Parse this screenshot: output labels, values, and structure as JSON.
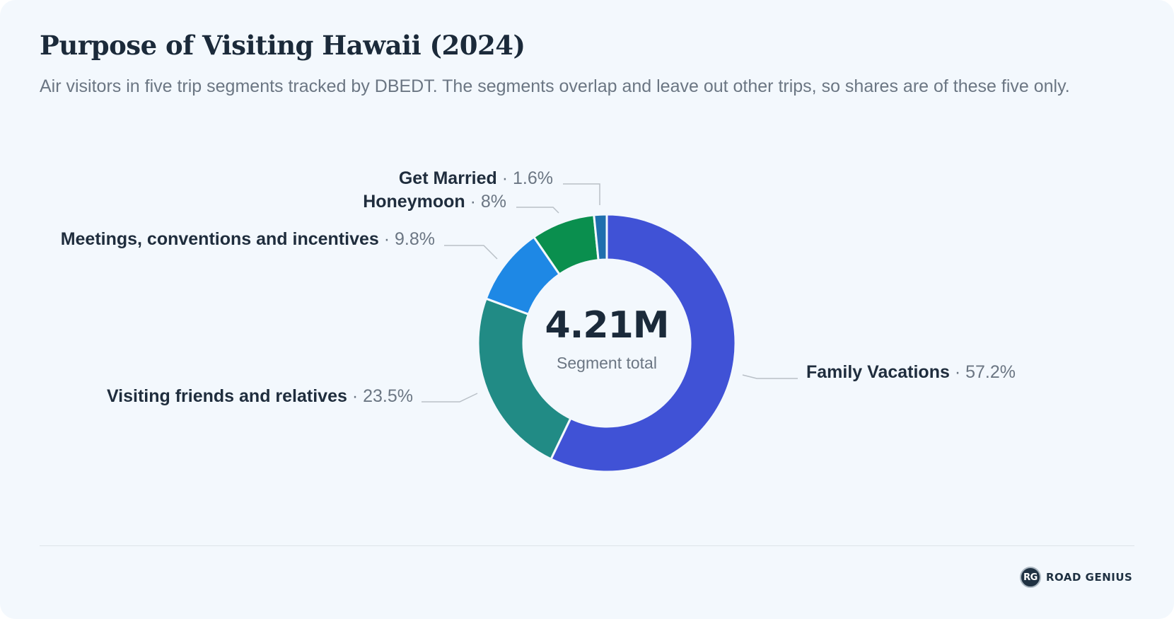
{
  "header": {
    "title": "Purpose of Visiting Hawaii (2024)",
    "subtitle": "Air visitors in five trip segments tracked by DBEDT. The segments overlap and leave out other trips, so shares are of these five only."
  },
  "chart_data": {
    "type": "pie",
    "donut": true,
    "title": "Purpose of Visiting Hawaii (2024)",
    "center_value": "4.21M",
    "center_label": "Segment total",
    "unit": "%",
    "slices": [
      {
        "label": "Family Vacations",
        "value": 57.2,
        "value_label": "57.2%",
        "color": "#4052d6"
      },
      {
        "label": "Visiting friends and relatives",
        "value": 23.5,
        "value_label": "23.5%",
        "color": "#218b85"
      },
      {
        "label": "Meetings, conventions and incentives",
        "value": 9.8,
        "value_label": "9.8%",
        "color": "#1e88e5"
      },
      {
        "label": "Honeymoon",
        "value": 8,
        "value_label": "8%",
        "color": "#0a8f4e"
      },
      {
        "label": "Get Married",
        "value": 1.6,
        "value_label": "1.6%",
        "color": "#1f6fae"
      }
    ],
    "legend": "none",
    "labels": "outside-with-leader-lines"
  },
  "colors": {
    "background": "#f3f8fd",
    "title": "#1b2a3a",
    "subtitle": "#6b7683",
    "label_name": "#1f2d3d",
    "label_value": "#6b7683",
    "leader_line": "#b9c0c7",
    "divider": "#dde3e8"
  },
  "footer": {
    "brand_mark": "RG",
    "brand_name": "ROAD GENIUS",
    "brand_icon": "road-genius-logo-icon"
  }
}
